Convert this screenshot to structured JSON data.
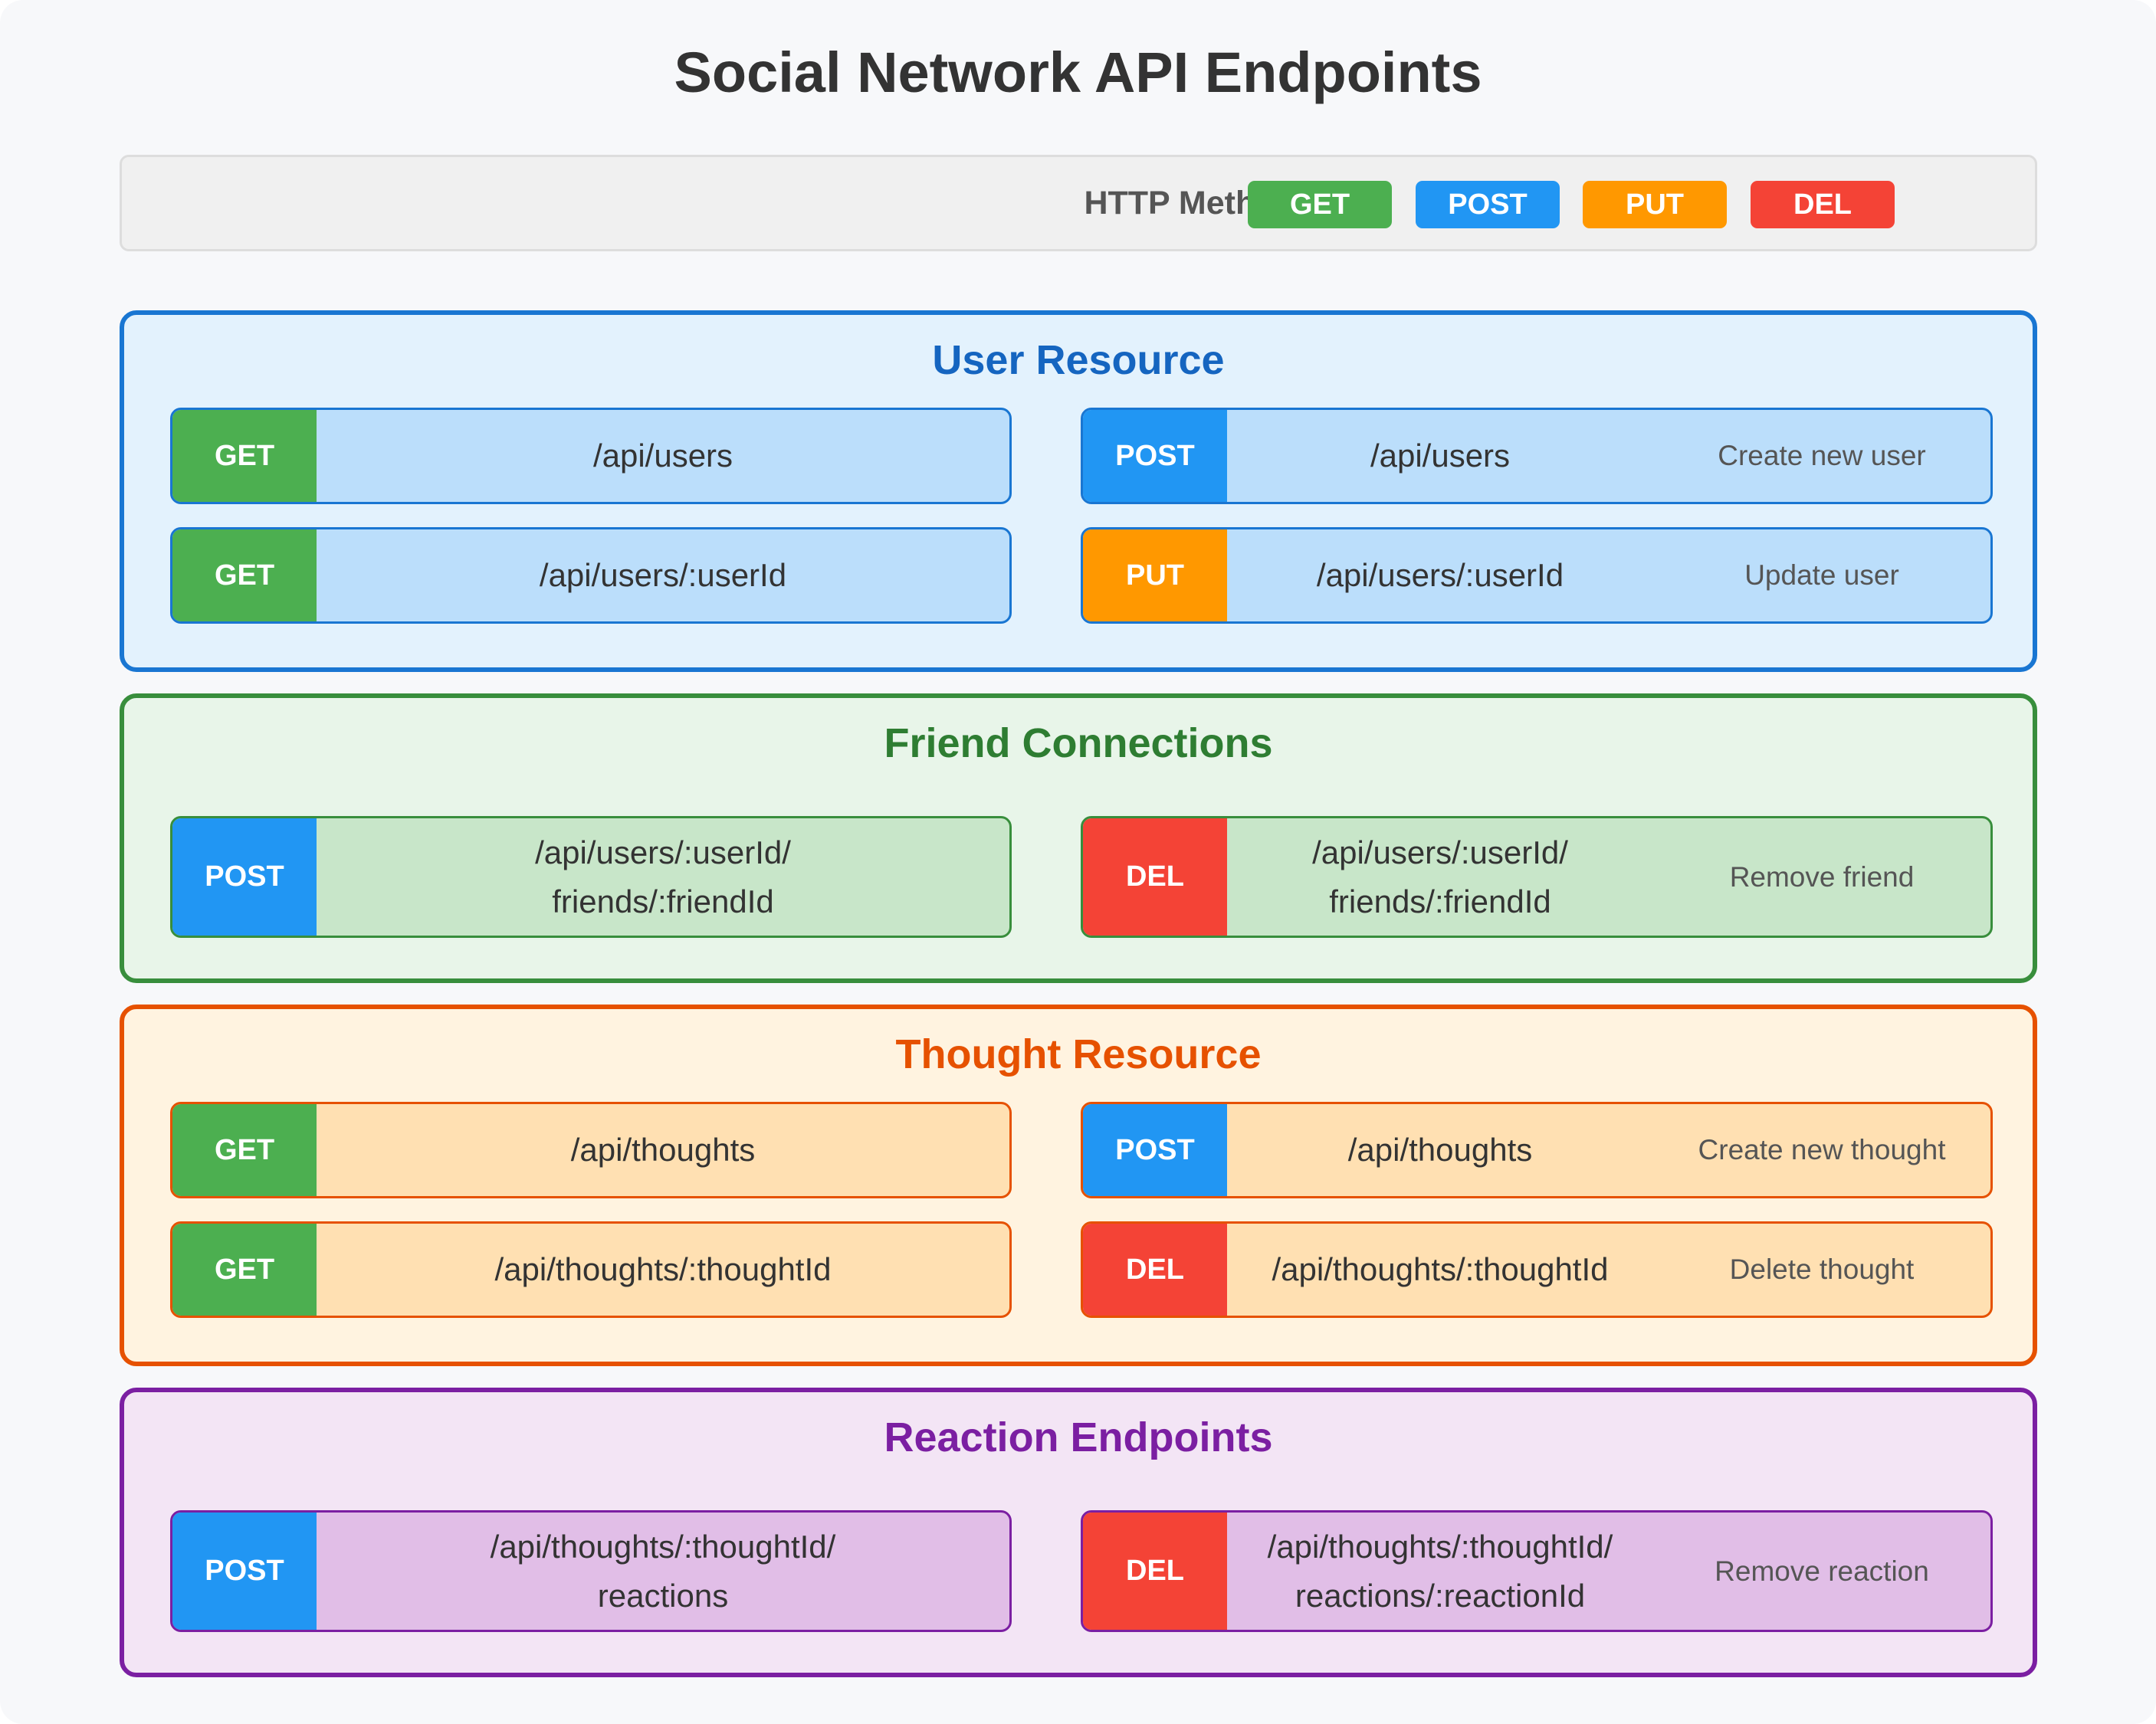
{
  "title": "Social Network API Endpoints",
  "legend": {
    "label": "HTTP Methods:",
    "methods": [
      "GET",
      "POST",
      "PUT",
      "DEL"
    ]
  },
  "colors": {
    "get": "#4caf50",
    "post": "#2196f3",
    "put": "#ff9800",
    "del": "#f44336",
    "user": "#1976d2",
    "friend": "#388e3c",
    "thought": "#e65100",
    "reaction": "#7b1fa2"
  },
  "sections": [
    {
      "title": "User Resource",
      "endpoints": [
        {
          "method": "GET",
          "path": "/api/users",
          "description": ""
        },
        {
          "method": "POST",
          "path": "/api/users",
          "description": "Create new user"
        },
        {
          "method": "GET",
          "path": "/api/users/:userId",
          "description": ""
        },
        {
          "method": "PUT",
          "path": "/api/users/:userId",
          "description": "Update user"
        }
      ]
    },
    {
      "title": "Friend Connections",
      "endpoints": [
        {
          "method": "POST",
          "path": "/api/users/:userId/\nfriends/:friendId",
          "description": ""
        },
        {
          "method": "DEL",
          "path": "/api/users/:userId/\nfriends/:friendId",
          "description": "Remove friend"
        }
      ]
    },
    {
      "title": "Thought Resource",
      "endpoints": [
        {
          "method": "GET",
          "path": "/api/thoughts",
          "description": ""
        },
        {
          "method": "POST",
          "path": "/api/thoughts",
          "description": "Create new thought"
        },
        {
          "method": "GET",
          "path": "/api/thoughts/:thoughtId",
          "description": ""
        },
        {
          "method": "DEL",
          "path": "/api/thoughts/:thoughtId",
          "description": "Delete thought"
        }
      ]
    },
    {
      "title": "Reaction Endpoints",
      "endpoints": [
        {
          "method": "POST",
          "path": "/api/thoughts/:thoughtId/\nreactions",
          "description": ""
        },
        {
          "method": "DEL",
          "path": "/api/thoughts/:thoughtId/\nreactions/:reactionId",
          "description": "Remove reaction"
        }
      ]
    }
  ]
}
